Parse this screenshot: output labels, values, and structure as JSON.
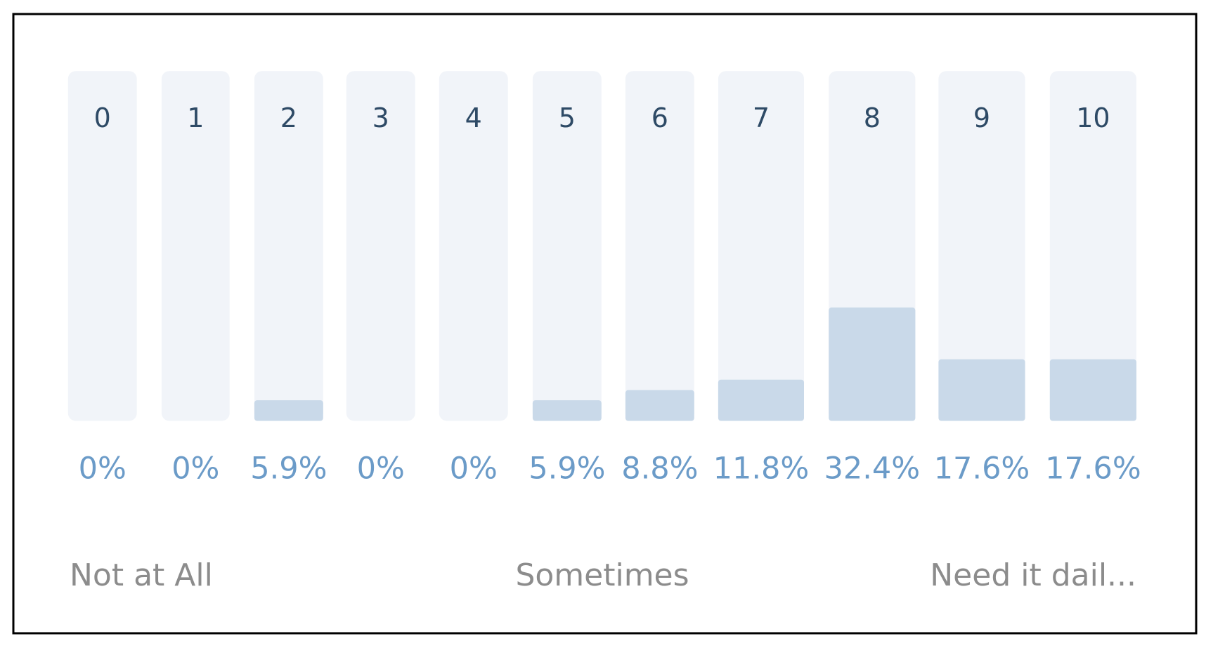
{
  "chart_data": {
    "type": "bar",
    "categories": [
      "0",
      "1",
      "2",
      "3",
      "4",
      "5",
      "6",
      "7",
      "8",
      "9",
      "10"
    ],
    "values": [
      0,
      0,
      5.9,
      0,
      0,
      5.9,
      8.8,
      11.8,
      32.4,
      17.6,
      17.6
    ],
    "value_labels": [
      "0%",
      "0%",
      "5.9%",
      "0%",
      "0%",
      "5.9%",
      "8.8%",
      "11.8%",
      "32.4%",
      "17.6%",
      "17.6%"
    ],
    "ylim": [
      0,
      100
    ],
    "color": "#c9d9e9",
    "scale_labels": [
      "Not at All",
      "Sometimes",
      "Need it dail..."
    ]
  }
}
